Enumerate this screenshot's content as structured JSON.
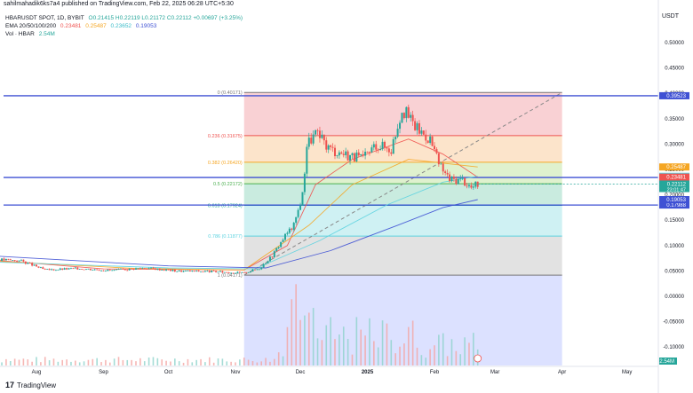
{
  "header": {
    "publisher": "sahilmahadik6ks7a4 published on TradingView.com, Feb 22, 2025 06:28 UTC+5:30"
  },
  "legend": {
    "symbol": "HBARUSDT SPOT, 1D, BYBIT",
    "ohlc": "O0.21415 H0.22119 L0.21172 C0.22112 +0.00697 (+3.25%)",
    "ema_title": "EMA 20/50/100/200",
    "ema_values": [
      "0.23481",
      "0.25487",
      "0.23652",
      "0.19053"
    ],
    "vol_title": "Vol · HBAR",
    "vol_value": "2.54M"
  },
  "currency_label": "USDT",
  "footer": {
    "brand": "TradingView"
  },
  "colors": {
    "up": "#26a69a",
    "down": "#ef5350",
    "ema20": "#ef5350",
    "ema50": "#f5a623",
    "ema100": "#5dd3e0",
    "ema200": "#3f51d4",
    "hline": "#3f51d4"
  },
  "chart_data": {
    "type": "line",
    "title": "HBARUSDT SPOT, 1D, BYBIT",
    "xlabel": "",
    "ylabel": "",
    "x_ticks": [
      "Aug",
      "Sep",
      "Oct",
      "Nov",
      "Dec",
      "2025",
      "Feb",
      "Mar",
      "Apr",
      "May"
    ],
    "y_ticks": [
      "0.50000",
      "0.45000",
      "0.40000",
      "0.35000",
      "0.30000",
      "0.25000",
      "0.20000",
      "0.15000",
      "0.10000",
      "0.05000",
      "0.00000",
      "-0.05000",
      "-0.10000"
    ],
    "ylim": [
      -0.12,
      0.55
    ],
    "price_path": [
      {
        "date": "2024-07-10",
        "price": 0.074
      },
      {
        "date": "2024-07-25",
        "price": 0.07
      },
      {
        "date": "2024-08-05",
        "price": 0.052
      },
      {
        "date": "2024-08-20",
        "price": 0.055
      },
      {
        "date": "2024-09-05",
        "price": 0.051
      },
      {
        "date": "2024-09-20",
        "price": 0.056
      },
      {
        "date": "2024-10-05",
        "price": 0.05
      },
      {
        "date": "2024-10-20",
        "price": 0.049
      },
      {
        "date": "2024-11-05",
        "price": 0.046
      },
      {
        "date": "2024-11-12",
        "price": 0.055
      },
      {
        "date": "2024-11-18",
        "price": 0.08
      },
      {
        "date": "2024-11-24",
        "price": 0.12
      },
      {
        "date": "2024-11-28",
        "price": 0.14
      },
      {
        "date": "2024-12-02",
        "price": 0.2
      },
      {
        "date": "2024-12-04",
        "price": 0.3
      },
      {
        "date": "2024-12-08",
        "price": 0.32
      },
      {
        "date": "2024-12-15",
        "price": 0.29
      },
      {
        "date": "2024-12-22",
        "price": 0.28
      },
      {
        "date": "2024-12-30",
        "price": 0.27
      },
      {
        "date": "2025-01-05",
        "price": 0.3
      },
      {
        "date": "2025-01-12",
        "price": 0.29
      },
      {
        "date": "2025-01-17",
        "price": 0.37
      },
      {
        "date": "2025-01-24",
        "price": 0.33
      },
      {
        "date": "2025-01-30",
        "price": 0.31
      },
      {
        "date": "2025-02-03",
        "price": 0.26
      },
      {
        "date": "2025-02-08",
        "price": 0.23
      },
      {
        "date": "2025-02-14",
        "price": 0.23
      },
      {
        "date": "2025-02-18",
        "price": 0.214
      },
      {
        "date": "2025-02-21",
        "price": 0.2211
      }
    ],
    "fibonacci": {
      "range_dates": [
        "2024-11-05",
        "2025-04-01"
      ],
      "levels": [
        {
          "ratio": "0",
          "price": 0.40171,
          "label": "0 (0.40171)",
          "fill": "#f8c9cc"
        },
        {
          "ratio": "0.236",
          "price": 0.31675,
          "label": "0.236 (0.31675)",
          "fill": "#fbdfc2"
        },
        {
          "ratio": "0.382",
          "price": 0.2642,
          "label": "0.382 (0.26420)",
          "fill": "#d9efc6"
        },
        {
          "ratio": "0.5",
          "price": 0.22172,
          "label": "0.5 (0.22172)",
          "fill": "#bfe8d9"
        },
        {
          "ratio": "0.618",
          "price": 0.17924,
          "label": "0.618 (0.17924)",
          "fill": "#c7eef1"
        },
        {
          "ratio": "0.786",
          "price": 0.11877,
          "label": "0.786 (0.11877)",
          "fill": "#dddddd"
        },
        {
          "ratio": "1",
          "price": 0.04171,
          "label": "1 (0.04171)",
          "fill": "#d6dcff"
        }
      ]
    },
    "horizontal_lines": [
      {
        "price": 0.39523,
        "label": "0.39523"
      },
      {
        "price": 0.23412,
        "label": "0.23412"
      },
      {
        "price": 0.17988,
        "label": "0.17988"
      }
    ],
    "price_scale_tags": [
      {
        "label": "0.25487",
        "price": 0.25487,
        "color": "#f5a623"
      },
      {
        "label": "0.23652",
        "price": 0.23652,
        "color": "#5dd3e0"
      },
      {
        "label": "0.23481",
        "price": 0.23481,
        "color": "#ef5350"
      },
      {
        "label": "0.22112",
        "price": 0.22112,
        "color": "#26a69a",
        "sub": "23:01:47"
      },
      {
        "label": "0.19053",
        "price": 0.19053,
        "color": "#3f51d4"
      }
    ],
    "ema": [
      {
        "name": "EMA 20",
        "path": [
          {
            "date": "2024-07-10",
            "price": 0.072
          },
          {
            "date": "2024-09-01",
            "price": 0.054
          },
          {
            "date": "2024-11-05",
            "price": 0.052
          },
          {
            "date": "2024-11-25",
            "price": 0.1
          },
          {
            "date": "2024-12-08",
            "price": 0.22
          },
          {
            "date": "2024-12-25",
            "price": 0.27
          },
          {
            "date": "2025-01-20",
            "price": 0.31
          },
          {
            "date": "2025-02-05",
            "price": 0.28
          },
          {
            "date": "2025-02-21",
            "price": 0.2348
          }
        ]
      },
      {
        "name": "EMA 50",
        "path": [
          {
            "date": "2024-07-10",
            "price": 0.07
          },
          {
            "date": "2024-09-15",
            "price": 0.055
          },
          {
            "date": "2024-11-05",
            "price": 0.052
          },
          {
            "date": "2024-12-05",
            "price": 0.14
          },
          {
            "date": "2024-12-25",
            "price": 0.22
          },
          {
            "date": "2025-01-20",
            "price": 0.27
          },
          {
            "date": "2025-02-21",
            "price": 0.2549
          }
        ]
      },
      {
        "name": "EMA 100",
        "path": [
          {
            "date": "2024-07-10",
            "price": 0.068
          },
          {
            "date": "2024-10-01",
            "price": 0.056
          },
          {
            "date": "2024-11-10",
            "price": 0.054
          },
          {
            "date": "2024-12-10",
            "price": 0.11
          },
          {
            "date": "2025-01-10",
            "price": 0.18
          },
          {
            "date": "2025-02-05",
            "price": 0.225
          },
          {
            "date": "2025-02-21",
            "price": 0.2365
          }
        ]
      },
      {
        "name": "EMA 200",
        "path": [
          {
            "date": "2024-07-10",
            "price": 0.08
          },
          {
            "date": "2024-10-01",
            "price": 0.06
          },
          {
            "date": "2024-11-15",
            "price": 0.056
          },
          {
            "date": "2024-12-15",
            "price": 0.09
          },
          {
            "date": "2025-01-15",
            "price": 0.14
          },
          {
            "date": "2025-02-05",
            "price": 0.175
          },
          {
            "date": "2025-02-21",
            "price": 0.1905
          }
        ]
      }
    ]
  }
}
